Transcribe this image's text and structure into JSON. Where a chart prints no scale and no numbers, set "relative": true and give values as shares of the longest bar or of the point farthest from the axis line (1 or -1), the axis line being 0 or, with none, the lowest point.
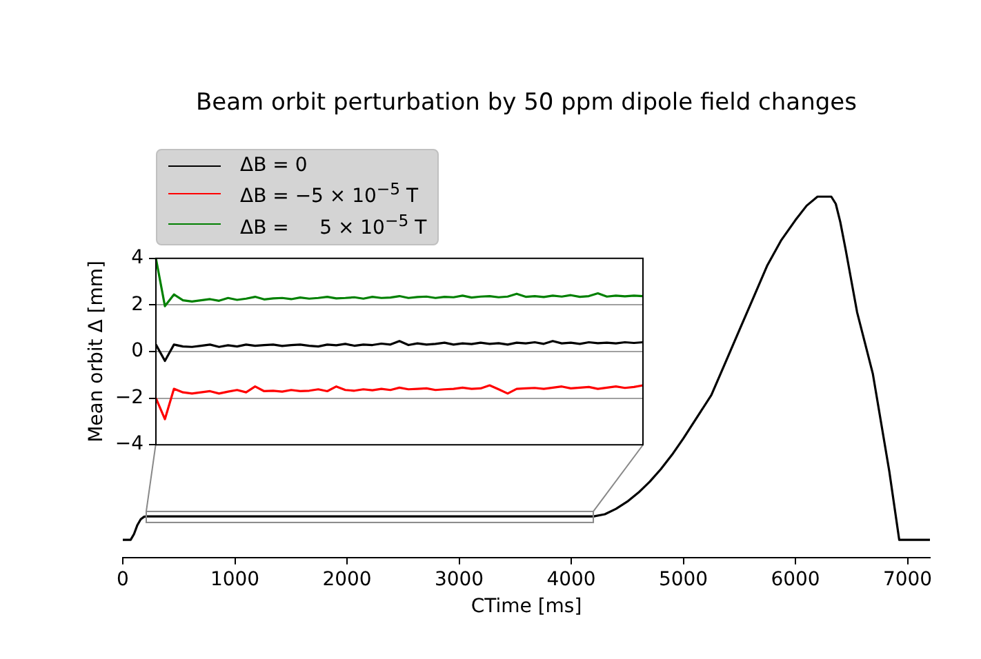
{
  "chart_data": [
    {
      "type": "line",
      "title": "Beam orbit perturbation by 50 ppm dipole field changes",
      "xlabel": "CTime [ms]",
      "relative": true,
      "tick_labels": "x",
      "grid": false,
      "xlim": [
        0,
        7200
      ],
      "xticks": [
        0,
        1000,
        2000,
        3000,
        4000,
        5000,
        6000,
        7000
      ],
      "marker": "none",
      "x": [
        0,
        70,
        100,
        130,
        160,
        190,
        212,
        1000,
        2000,
        3000,
        4200,
        4300,
        4400,
        4500,
        4600,
        4700,
        4800,
        4900,
        5000,
        5125,
        5250,
        5375,
        5500,
        5625,
        5750,
        5875,
        6000,
        6100,
        6197,
        6320,
        6360,
        6400,
        6450,
        6550,
        6690,
        6837,
        6926,
        7200
      ],
      "series": [
        {
          "color": "#000000",
          "values": [
            0.049,
            0.049,
            0.065,
            0.09,
            0.106,
            0.113,
            0.114,
            0.114,
            0.114,
            0.114,
            0.114,
            0.12,
            0.135,
            0.155,
            0.18,
            0.21,
            0.245,
            0.285,
            0.33,
            0.39,
            0.45,
            0.54,
            0.63,
            0.72,
            0.81,
            0.88,
            0.935,
            0.975,
            1,
            1,
            0.98,
            0.93,
            0.85,
            0.68,
            0.51,
            0.24,
            0.049,
            0.049
          ]
        }
      ]
    },
    {
      "type": "line",
      "ylabel": "Mean orbit Δ [mm]",
      "ylim": [
        -4,
        4
      ],
      "yticks": [
        -4,
        -2,
        0,
        2,
        4
      ],
      "tick_labels": "y",
      "grid": "y",
      "legend": "top left",
      "marker": "none",
      "categories": [
        null,
        null,
        null,
        null,
        null,
        null,
        null,
        null,
        null,
        null,
        null,
        null,
        null,
        null,
        null,
        null,
        null,
        null,
        null,
        null,
        null,
        null,
        null,
        null,
        null,
        null,
        null,
        null,
        null,
        null,
        null,
        null,
        null,
        null,
        null,
        null,
        null,
        null,
        null,
        null,
        null,
        null,
        null,
        null,
        null,
        null,
        null,
        null,
        null,
        null,
        null,
        null,
        null,
        null,
        null
      ],
      "series": [
        {
          "name": "ΔB = 0",
          "color": "#000000",
          "values": [
            0.3,
            -0.4,
            0.3,
            0.22,
            0.2,
            0.25,
            0.3,
            0.2,
            0.27,
            0.22,
            0.3,
            0.25,
            0.28,
            0.3,
            0.24,
            0.28,
            0.3,
            0.25,
            0.22,
            0.3,
            0.27,
            0.33,
            0.25,
            0.3,
            0.28,
            0.34,
            0.3,
            0.45,
            0.28,
            0.35,
            0.3,
            0.33,
            0.38,
            0.3,
            0.35,
            0.32,
            0.38,
            0.33,
            0.36,
            0.3,
            0.38,
            0.35,
            0.4,
            0.33,
            0.45,
            0.35,
            0.38,
            0.33,
            0.4,
            0.36,
            0.38,
            0.35,
            0.4,
            0.37,
            0.4
          ]
        },
        {
          "name": "ΔB = −5 × 10$^{−5}$ T",
          "color": "#ff0000",
          "values": [
            -2.0,
            -2.9,
            -1.6,
            -1.75,
            -1.8,
            -1.75,
            -1.7,
            -1.8,
            -1.72,
            -1.65,
            -1.75,
            -1.5,
            -1.7,
            -1.68,
            -1.72,
            -1.65,
            -1.7,
            -1.68,
            -1.62,
            -1.7,
            -1.5,
            -1.65,
            -1.68,
            -1.62,
            -1.66,
            -1.6,
            -1.65,
            -1.55,
            -1.62,
            -1.6,
            -1.58,
            -1.65,
            -1.62,
            -1.6,
            -1.55,
            -1.6,
            -1.58,
            -1.45,
            -1.62,
            -1.8,
            -1.6,
            -1.58,
            -1.56,
            -1.6,
            -1.55,
            -1.5,
            -1.58,
            -1.55,
            -1.52,
            -1.6,
            -1.55,
            -1.5,
            -1.56,
            -1.52,
            -1.45
          ]
        },
        {
          "name": "ΔB =     5 × 10$^{−5}$ T",
          "color": "#008000",
          "values": [
            4.0,
            1.95,
            2.45,
            2.2,
            2.15,
            2.2,
            2.25,
            2.18,
            2.3,
            2.22,
            2.27,
            2.35,
            2.24,
            2.28,
            2.3,
            2.25,
            2.32,
            2.27,
            2.3,
            2.35,
            2.28,
            2.3,
            2.33,
            2.27,
            2.35,
            2.3,
            2.32,
            2.38,
            2.3,
            2.34,
            2.36,
            2.3,
            2.35,
            2.33,
            2.4,
            2.32,
            2.36,
            2.38,
            2.33,
            2.36,
            2.48,
            2.35,
            2.38,
            2.34,
            2.4,
            2.36,
            2.42,
            2.35,
            2.38,
            2.5,
            2.36,
            2.4,
            2.37,
            2.4,
            2.38
          ]
        }
      ]
    }
  ]
}
